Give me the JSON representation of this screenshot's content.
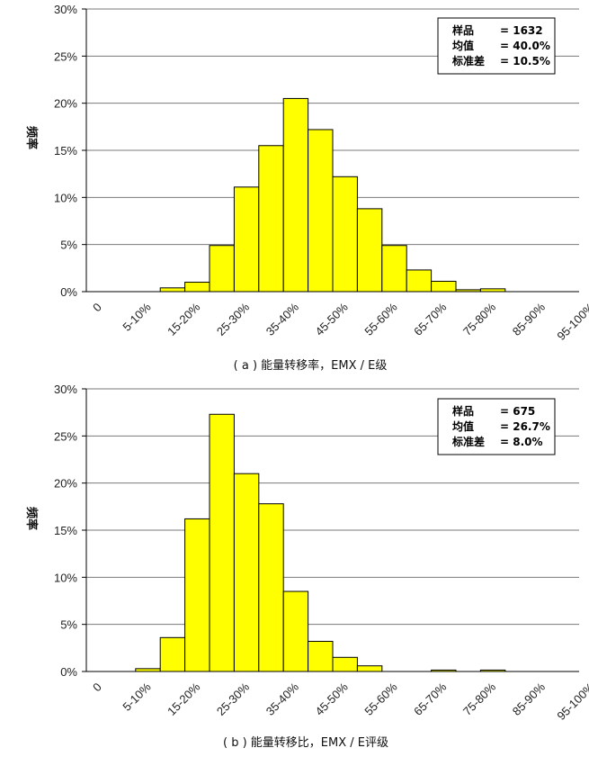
{
  "chart_data": [
    {
      "type": "bar",
      "categories": [
        "0",
        "5-10%",
        "10-15%",
        "15-20%",
        "20-25%",
        "25-30%",
        "30-35%",
        "35-40%",
        "40-45%",
        "45-50%",
        "50-55%",
        "55-60%",
        "60-65%",
        "65-70%",
        "70-75%",
        "75-80%",
        "80-85%",
        "85-90%",
        "90-95%",
        "95-100%"
      ],
      "shown_tick_labels": [
        "0",
        "5-10%",
        "15-20%",
        "25-30%",
        "35-40%",
        "45-50%",
        "55-60%",
        "65-70%",
        "75-80%",
        "85-90%",
        "95-100%"
      ],
      "values": [
        0,
        0,
        0,
        0.4,
        1.0,
        4.9,
        11.1,
        15.5,
        20.5,
        17.2,
        12.2,
        8.8,
        4.9,
        2.3,
        1.1,
        0.2,
        0.3,
        0,
        0,
        0
      ],
      "ylabel": "频率",
      "ylim": [
        0,
        30
      ],
      "yticks": [
        "0%",
        "5%",
        "10%",
        "15%",
        "20%",
        "25%",
        "30%"
      ],
      "caption": "( a ) 能量转移率，EMX / E级",
      "stats": [
        {
          "label": "样品",
          "value": "= 1632"
        },
        {
          "label": "均值",
          "value": "= 40.0%"
        },
        {
          "label": "标准差",
          "value": "= 10.5%"
        }
      ],
      "grid": true,
      "bar_color": "#ffff00",
      "legend": "top-right"
    },
    {
      "type": "bar",
      "categories": [
        "0",
        "5-10%",
        "10-15%",
        "15-20%",
        "20-25%",
        "25-30%",
        "30-35%",
        "35-40%",
        "40-45%",
        "45-50%",
        "50-55%",
        "55-60%",
        "60-65%",
        "65-70%",
        "70-75%",
        "75-80%",
        "80-85%",
        "85-90%",
        "90-95%",
        "95-100%"
      ],
      "shown_tick_labels": [
        "0",
        "5-10%",
        "15-20%",
        "25-30%",
        "35-40%",
        "45-50%",
        "55-60%",
        "65-70%",
        "75-80%",
        "85-90%",
        "95-100%"
      ],
      "values": [
        0,
        0,
        0.3,
        3.6,
        16.2,
        27.3,
        21.0,
        17.8,
        8.5,
        3.2,
        1.5,
        0.6,
        0,
        0,
        0.15,
        0,
        0.15,
        0,
        0,
        0
      ],
      "ylabel": "频率",
      "ylim": [
        0,
        30
      ],
      "yticks": [
        "0%",
        "5%",
        "10%",
        "15%",
        "20%",
        "25%",
        "30%"
      ],
      "caption": "( b ) 能量转移比，EMX / E评级",
      "stats": [
        {
          "label": "样品",
          "value": "= 675"
        },
        {
          "label": "均值",
          "value": "= 26.7%"
        },
        {
          "label": "标准差",
          "value": "= 8.0%"
        }
      ],
      "grid": true,
      "bar_color": "#ffff00",
      "legend": "top-right"
    }
  ]
}
